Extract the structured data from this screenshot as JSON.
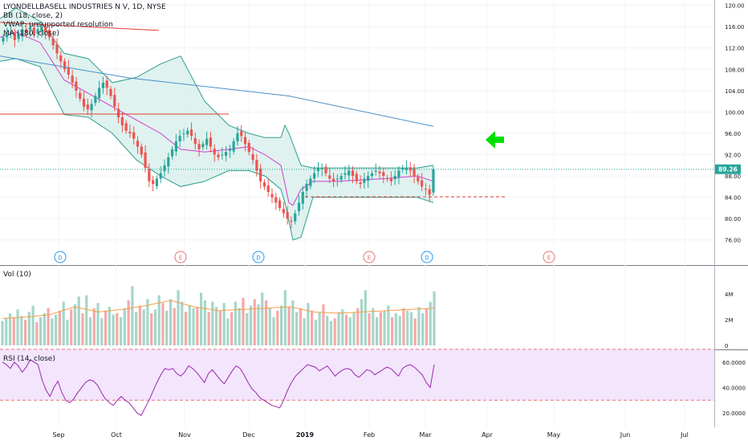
{
  "chart_data": {
    "type": "candlestick",
    "title": "LYONDELLBASELL INDUSTRIES N V, 1D, NYSE",
    "legend": [
      "BB (18, close, 2)",
      "VWAP: unsupported resolution",
      "MA (180, close)"
    ],
    "last_price_label": "89.26",
    "x_ticks": [
      "Sep",
      "Oct",
      "Nov",
      "Dec",
      "2019",
      "Feb",
      "Mar",
      "Apr",
      "May",
      "Jun",
      "Jul"
    ],
    "price_axis": {
      "range": [
        74,
        121
      ],
      "ticks": [
        "76.00",
        "80.00",
        "84.00",
        "88.00",
        "92.00",
        "96.00",
        "100.00",
        "104.00",
        "108.00",
        "112.00",
        "116.00",
        "120.00"
      ]
    },
    "closes": [
      114,
      114.5,
      115,
      113.5,
      114.5,
      115.5,
      115,
      116,
      114.5,
      115.5,
      116,
      115,
      114,
      112.5,
      111,
      109.5,
      108,
      107,
      105.5,
      104,
      102.5,
      101,
      100.5,
      101.5,
      103,
      104.5,
      105.5,
      104.5,
      103,
      101,
      99,
      97.5,
      96.5,
      96,
      95,
      93.5,
      92,
      89.5,
      87,
      86.5,
      87.5,
      88.5,
      90,
      91.5,
      93,
      94.5,
      95.5,
      96,
      96.5,
      95.5,
      94,
      93,
      94,
      95,
      93.5,
      92,
      91.5,
      92,
      92.5,
      93,
      94.5,
      96,
      95.5,
      94,
      92.5,
      91,
      89,
      87,
      86,
      85,
      84,
      83,
      82,
      81,
      80,
      79.5,
      81,
      83,
      85,
      86.5,
      87.5,
      88.5,
      89.5,
      89.5,
      88.5,
      87.5,
      87,
      87.5,
      88,
      88.5,
      89,
      88,
      87,
      86.5,
      87.5,
      88,
      88.5,
      89,
      88.5,
      88,
      87.5,
      87,
      88,
      89,
      89.5,
      89.5,
      89,
      88,
      87,
      86,
      85.5,
      84.5,
      89.26
    ],
    "ma180": [
      110.5,
      106.4,
      103,
      97.3
    ],
    "bb_upper": [
      117.5,
      119.5,
      117,
      111,
      110,
      105.5,
      106.5,
      109,
      110.5,
      102,
      97.5,
      96,
      95.2,
      95.2,
      97.5,
      96,
      94,
      90,
      89.5,
      89.5,
      89.5,
      89.5,
      90
    ],
    "bb_lower": [
      109.5,
      110,
      108.5,
      99.5,
      99,
      96,
      91,
      88,
      86,
      87,
      89,
      89,
      88,
      85.5,
      83,
      79.5,
      76,
      76.5,
      84,
      84,
      84,
      84,
      83
    ],
    "bb_basis": [
      114,
      115,
      113,
      106,
      103.5,
      101,
      98.5,
      96,
      93,
      92.5,
      93,
      93.5,
      92,
      90,
      86.5,
      83,
      82.5,
      85.5,
      87,
      87,
      87.5,
      88,
      87
    ],
    "events": [
      "D",
      "E",
      "D",
      "E",
      "D",
      "E"
    ],
    "volume": {
      "label": "Vol (10)",
      "ticks": [
        "0",
        "2M",
        "4M"
      ],
      "values": [
        1.9,
        2.1,
        2.5,
        2.2,
        2.8,
        2.3,
        2.0,
        2.6,
        3.1,
        1.8,
        2.2,
        2.5,
        2.9,
        2.1,
        2.4,
        2.7,
        3.4,
        2.0,
        2.8,
        3.2,
        3.8,
        2.5,
        3.9,
        2.2,
        2.9,
        3.3,
        2.1,
        2.7,
        3.0,
        2.4,
        2.5,
        2.2,
        2.9,
        3.5,
        4.6,
        2.6,
        3.1,
        2.8,
        3.6,
        2.5,
        2.8,
        3.9,
        3.3,
        2.7,
        3.6,
        2.9,
        4.3,
        3.4,
        2.6,
        3.1,
        2.9,
        3.0,
        4.1,
        3.5,
        2.6,
        3.4,
        3.0,
        2.7,
        3.3,
        2.1,
        2.6,
        3.4,
        2.9,
        3.7,
        2.5,
        3.1,
        3.6,
        3.2,
        4.1,
        3.5,
        2.9,
        2.2,
        2.7,
        3.1,
        4.3,
        3.0,
        3.5,
        2.6,
        2.9,
        2.1,
        3.3,
        2.7,
        2.0,
        2.6,
        3.2,
        2.3,
        1.9,
        2.1,
        2.6,
        2.8,
        2.4,
        2.2,
        2.6,
        2.9,
        3.6,
        4.3,
        2.5,
        2.9,
        2.2,
        2.6,
        2.7,
        3.1,
        2.2,
        2.5,
        2.3,
        2.9,
        2.7,
        2.6,
        2.1,
        3.0,
        2.5,
        2.9,
        3.4,
        4.2
      ],
      "ma10": [
        2.1,
        2.2,
        2.4,
        3.0,
        2.6,
        2.8,
        3.1,
        3.5,
        3.0,
        2.7,
        2.8,
        2.9,
        3.0,
        2.6,
        2.5,
        2.6,
        2.7,
        2.8,
        2.9
      ]
    },
    "rsi": {
      "label": "RSI (14, close)",
      "ticks": [
        "20.0000",
        "40.0000",
        "60.0000"
      ],
      "upper_band": 70,
      "lower_band": 30,
      "values": [
        60,
        58,
        55,
        60,
        57,
        52,
        56,
        62,
        60,
        58,
        46,
        38,
        33,
        40,
        45,
        36,
        30,
        28,
        31,
        36,
        40,
        44,
        46,
        45,
        42,
        36,
        31,
        28,
        26,
        30,
        33,
        30,
        28,
        24,
        20,
        18,
        24,
        30,
        37,
        44,
        50,
        55,
        54,
        55,
        51,
        49,
        52,
        57,
        55,
        52,
        48,
        44,
        51,
        54,
        50,
        46,
        43,
        48,
        53,
        57,
        55,
        50,
        44,
        39,
        36,
        32,
        30,
        28,
        26,
        25,
        24,
        30,
        38,
        44,
        49,
        52,
        55,
        58,
        57,
        56,
        53,
        55,
        57,
        53,
        49,
        52,
        54,
        55,
        54,
        50,
        48,
        51,
        54,
        53,
        50,
        52,
        54,
        56,
        55,
        52,
        49,
        55,
        57,
        58,
        56,
        53,
        50,
        44,
        40,
        58
      ]
    }
  }
}
